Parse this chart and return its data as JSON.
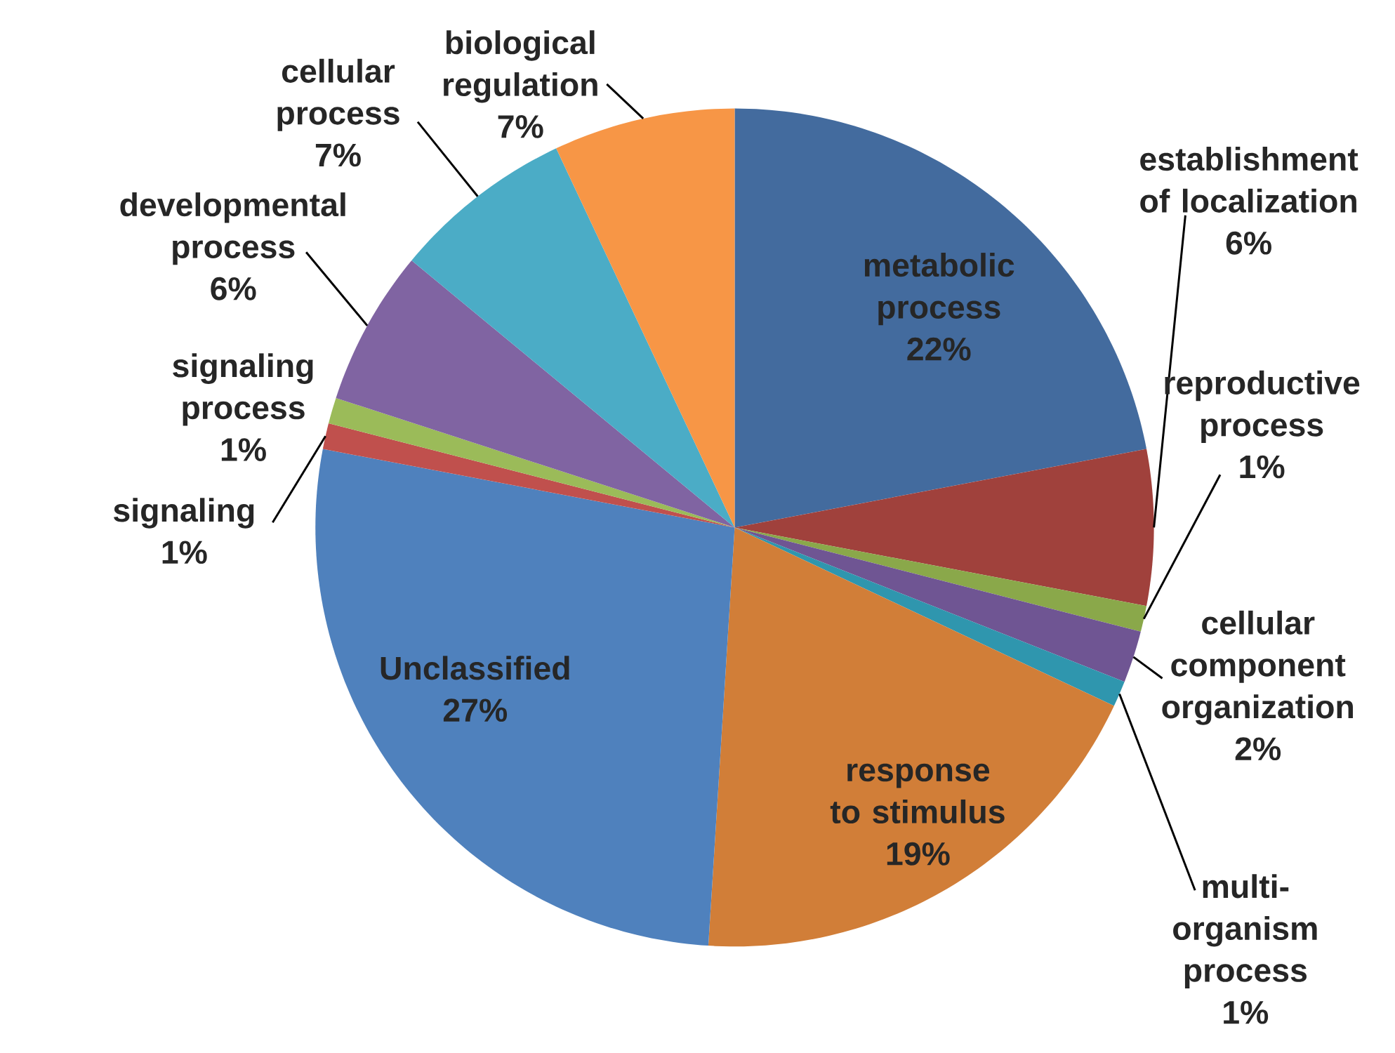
{
  "chart_data": {
    "type": "pie",
    "categories": [
      "metabolic process",
      "establishment of localization",
      "reproductive process",
      "cellular component organization",
      "multi-organism process",
      "response to stimulus",
      "Unclassified",
      "signaling",
      "signaling process",
      "developmental process",
      "cellular process",
      "biological regulation"
    ],
    "values": [
      22,
      6,
      1,
      2,
      1,
      19,
      27,
      1,
      1,
      6,
      7,
      7
    ],
    "value_labels": [
      "22%",
      "6%",
      "1%",
      "2%",
      "1%",
      "19%",
      "27%",
      "1%",
      "1%",
      "6%",
      "7%",
      "7%"
    ],
    "colors": [
      "#436b9e",
      "#a0413c",
      "#8aa84a",
      "#6f5593",
      "#2f96ae",
      "#d17e38",
      "#4f81bd",
      "#c0504d",
      "#9bbb59",
      "#8064a2",
      "#4bacc6",
      "#f79646"
    ]
  }
}
